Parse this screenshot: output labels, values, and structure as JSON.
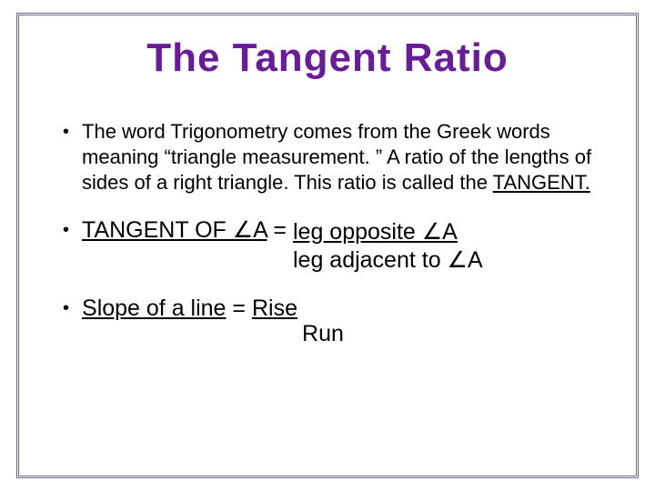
{
  "colors": {
    "title": "#6a1b9a",
    "frame": "#6a6a8a",
    "text": "#000000",
    "background": "#ffffff"
  },
  "typography": {
    "family": "Comic Sans MS",
    "title_size_pt": 44,
    "body_size_pt": 22,
    "emphasis_size_pt": 25
  },
  "title": "The Tangent Ratio",
  "bullets": {
    "intro": {
      "text_prefix": "The word Trigonometry comes from the Greek words meaning “triangle measurement. ” A ratio of the lengths of sides of a right triangle.  This ratio is called the ",
      "emphasis": "TANGENT."
    },
    "tangent_def": {
      "lhs": "TANGENT OF ∠A",
      "eq": " = ",
      "numerator": "leg opposite ∠A",
      "denominator": "leg adjacent to ∠A"
    },
    "slope": {
      "lhs": "Slope of a line",
      "eq": "  =  ",
      "numerator": "Rise",
      "denominator": "Run"
    }
  }
}
